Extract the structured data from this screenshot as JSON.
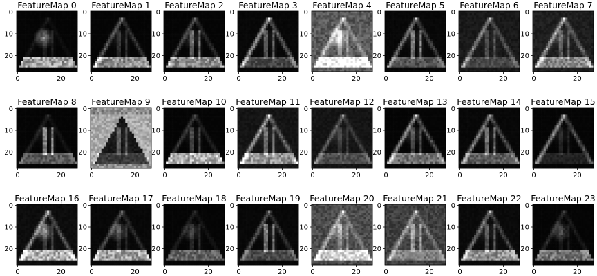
{
  "chart_data": {
    "type": "heatmap",
    "colormap": "gray",
    "grid": false,
    "rows": 3,
    "cols": 8,
    "xlim": [
      0,
      27
    ],
    "ylim": [
      0,
      27
    ],
    "xticks": [
      0,
      20
    ],
    "yticks": [
      0,
      10,
      20
    ],
    "panels": [
      {
        "title": "FeatureMap 0",
        "bg": 0.02,
        "edges": 0.1,
        "verticals": 0.2,
        "base": 0.85,
        "blob": 0.55
      },
      {
        "title": "FeatureMap 1",
        "bg": 0.02,
        "edges": 0.45,
        "verticals": 0.3,
        "base": 0.75,
        "blob": 0.1
      },
      {
        "title": "FeatureMap 2",
        "bg": 0.02,
        "edges": 0.35,
        "verticals": 0.7,
        "base": 0.7,
        "blob": 0.2
      },
      {
        "title": "FeatureMap 3",
        "bg": 0.03,
        "edges": 0.8,
        "verticals": 0.6,
        "base": 0.35,
        "blob": 0.1
      },
      {
        "title": "FeatureMap 4",
        "bg": 0.35,
        "edges": 0.6,
        "verticals": 0.55,
        "base": 0.9,
        "blob": 0.7
      },
      {
        "title": "FeatureMap 5",
        "bg": 0.03,
        "edges": 0.55,
        "verticals": 0.85,
        "base": 0.4,
        "blob": 0.1
      },
      {
        "title": "FeatureMap 6",
        "bg": 0.1,
        "edges": 0.55,
        "verticals": 0.4,
        "base": 0.25,
        "blob": 0.05
      },
      {
        "title": "FeatureMap 7",
        "bg": 0.12,
        "edges": 0.7,
        "verticals": 0.45,
        "base": 0.55,
        "blob": 0.2
      },
      {
        "title": "FeatureMap 8",
        "bg": 0.02,
        "edges": 0.15,
        "verticals": 0.95,
        "base": 0.45,
        "blob": 0.1
      },
      {
        "title": "FeatureMap 9",
        "bg": 0.55,
        "edges": 0.1,
        "verticals": 0.55,
        "base": 0.2,
        "blob": 0.05,
        "inverted": true
      },
      {
        "title": "FeatureMap 10",
        "bg": 0.02,
        "edges": 0.25,
        "verticals": 0.45,
        "base": 0.9,
        "blob": 0.1
      },
      {
        "title": "FeatureMap 11",
        "bg": 0.08,
        "edges": 0.75,
        "verticals": 0.65,
        "base": 0.7,
        "blob": 0.1
      },
      {
        "title": "FeatureMap 12",
        "bg": 0.08,
        "edges": 0.4,
        "verticals": 0.25,
        "base": 0.3,
        "blob": 0.15
      },
      {
        "title": "FeatureMap 13",
        "bg": 0.02,
        "edges": 0.7,
        "verticals": 0.45,
        "base": 0.55,
        "blob": 0.2
      },
      {
        "title": "FeatureMap 14",
        "bg": 0.03,
        "edges": 0.65,
        "verticals": 0.75,
        "base": 0.45,
        "blob": 0.1
      },
      {
        "title": "FeatureMap 15",
        "bg": 0.02,
        "edges": 0.7,
        "verticals": 0.2,
        "base": 0.15,
        "blob": 0.1
      },
      {
        "title": "FeatureMap 16",
        "bg": 0.05,
        "edges": 0.65,
        "verticals": 0.35,
        "base": 0.9,
        "blob": 0.6
      },
      {
        "title": "FeatureMap 17",
        "bg": 0.03,
        "edges": 0.35,
        "verticals": 0.25,
        "base": 0.85,
        "blob": 0.4
      },
      {
        "title": "FeatureMap 18",
        "bg": 0.02,
        "edges": 0.15,
        "verticals": 0.25,
        "base": 0.5,
        "blob": 0.25
      },
      {
        "title": "FeatureMap 19",
        "bg": 0.03,
        "edges": 0.4,
        "verticals": 0.85,
        "base": 0.35,
        "blob": 0.1
      },
      {
        "title": "FeatureMap 20",
        "bg": 0.3,
        "edges": 0.55,
        "verticals": 0.5,
        "base": 0.75,
        "blob": 0.35
      },
      {
        "title": "FeatureMap 21",
        "bg": 0.25,
        "edges": 0.5,
        "verticals": 0.7,
        "base": 0.35,
        "blob": 0.2
      },
      {
        "title": "FeatureMap 22",
        "bg": 0.04,
        "edges": 0.55,
        "verticals": 0.55,
        "base": 0.75,
        "blob": 0.15
      },
      {
        "title": "FeatureMap 23",
        "bg": 0.02,
        "edges": 0.2,
        "verticals": 0.15,
        "base": 0.6,
        "blob": 0.35
      }
    ]
  }
}
